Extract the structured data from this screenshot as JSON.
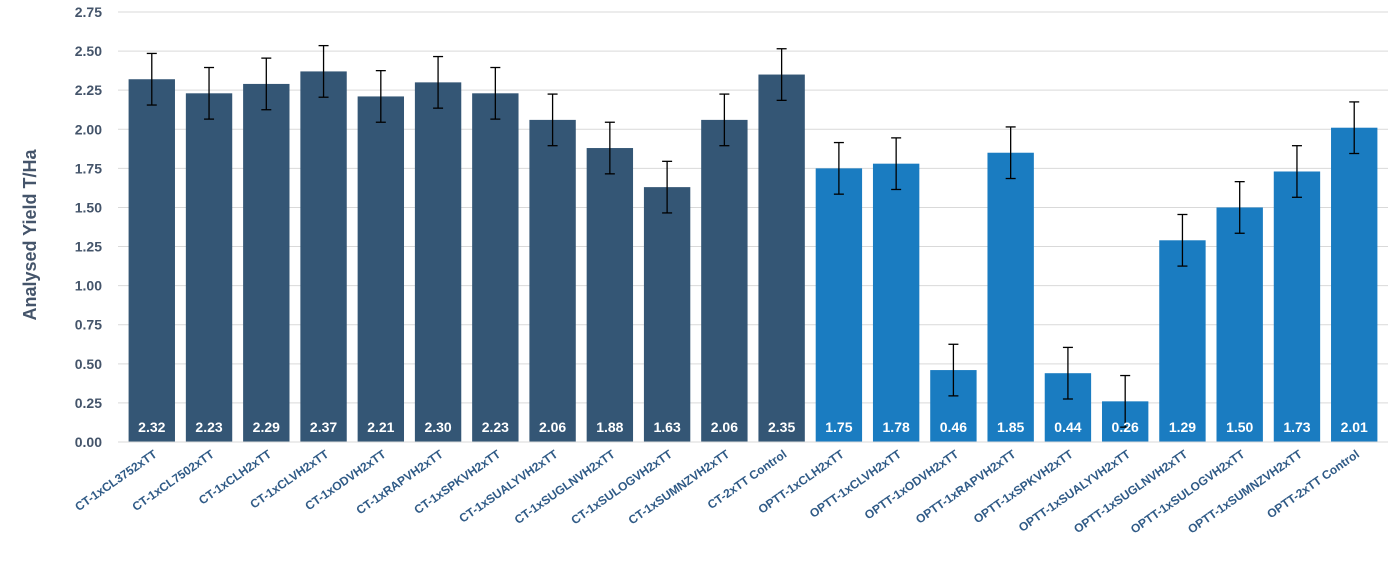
{
  "chart_data": {
    "type": "bar",
    "title": "",
    "xlabel": "",
    "ylabel": "Analysed Yield T/Ha",
    "ylim": [
      0,
      2.75
    ],
    "yticks": [
      "0.00",
      "0.25",
      "0.50",
      "0.75",
      "1.00",
      "1.25",
      "1.50",
      "1.75",
      "2.00",
      "2.25",
      "2.50",
      "2.75"
    ],
    "grid": true,
    "error_bars": true,
    "colors": {
      "ct": "#345675",
      "optt": "#1a7cc1",
      "error": "#000000",
      "grid": "#d9d9d9",
      "label": "#ffffff"
    },
    "categories": [
      "CT-1xCL3752xTT",
      "CT-1xCL7502xTT",
      "CT-1xCLH2xTT",
      "CT-1xCLVH2xTT",
      "CT-1xODVH2xTT",
      "CT-1xRAPVH2xTT",
      "CT-1xSPKVH2xTT",
      "CT-1xSUALYVH2xTT",
      "CT-1xSUGLNVH2xTT",
      "CT-1xSULOGVH2xTT",
      "CT-1xSUMNZVH2xTT",
      "CT-2xTT Control",
      "OPTT-1xCLH2xTT",
      "OPTT-1xCLVH2xTT",
      "OPTT-1xODVH2xTT",
      "OPTT-1xRAPVH2xTT",
      "OPTT-1xSPKVH2xTT",
      "OPTT-1xSUALYVH2xTT",
      "OPTT-1xSUGLNVH2xTT",
      "OPTT-1xSULOGVH2xTT",
      "OPTT-1xSUMNZVH2xTT",
      "OPTT-2xTT Control"
    ],
    "values": [
      2.32,
      2.23,
      2.29,
      2.37,
      2.21,
      2.3,
      2.23,
      2.06,
      1.88,
      1.63,
      2.06,
      2.35,
      1.75,
      1.78,
      0.46,
      1.85,
      0.44,
      0.26,
      1.29,
      1.5,
      1.73,
      2.01
    ],
    "value_labels": [
      "2.32",
      "2.23",
      "2.29",
      "2.37",
      "2.21",
      "2.30",
      "2.23",
      "2.06",
      "1.88",
      "1.63",
      "2.06",
      "2.35",
      "1.75",
      "1.78",
      "0.46",
      "1.85",
      "0.44",
      "0.26",
      "1.29",
      "1.50",
      "1.73",
      "2.01"
    ],
    "groups": [
      "ct",
      "ct",
      "ct",
      "ct",
      "ct",
      "ct",
      "ct",
      "ct",
      "ct",
      "ct",
      "ct",
      "ct",
      "optt",
      "optt",
      "optt",
      "optt",
      "optt",
      "optt",
      "optt",
      "optt",
      "optt",
      "optt"
    ],
    "error": [
      0.165,
      0.165,
      0.165,
      0.165,
      0.165,
      0.165,
      0.165,
      0.165,
      0.165,
      0.165,
      0.165,
      0.165,
      0.165,
      0.165,
      0.165,
      0.165,
      0.165,
      0.165,
      0.165,
      0.165,
      0.165,
      0.165
    ]
  }
}
